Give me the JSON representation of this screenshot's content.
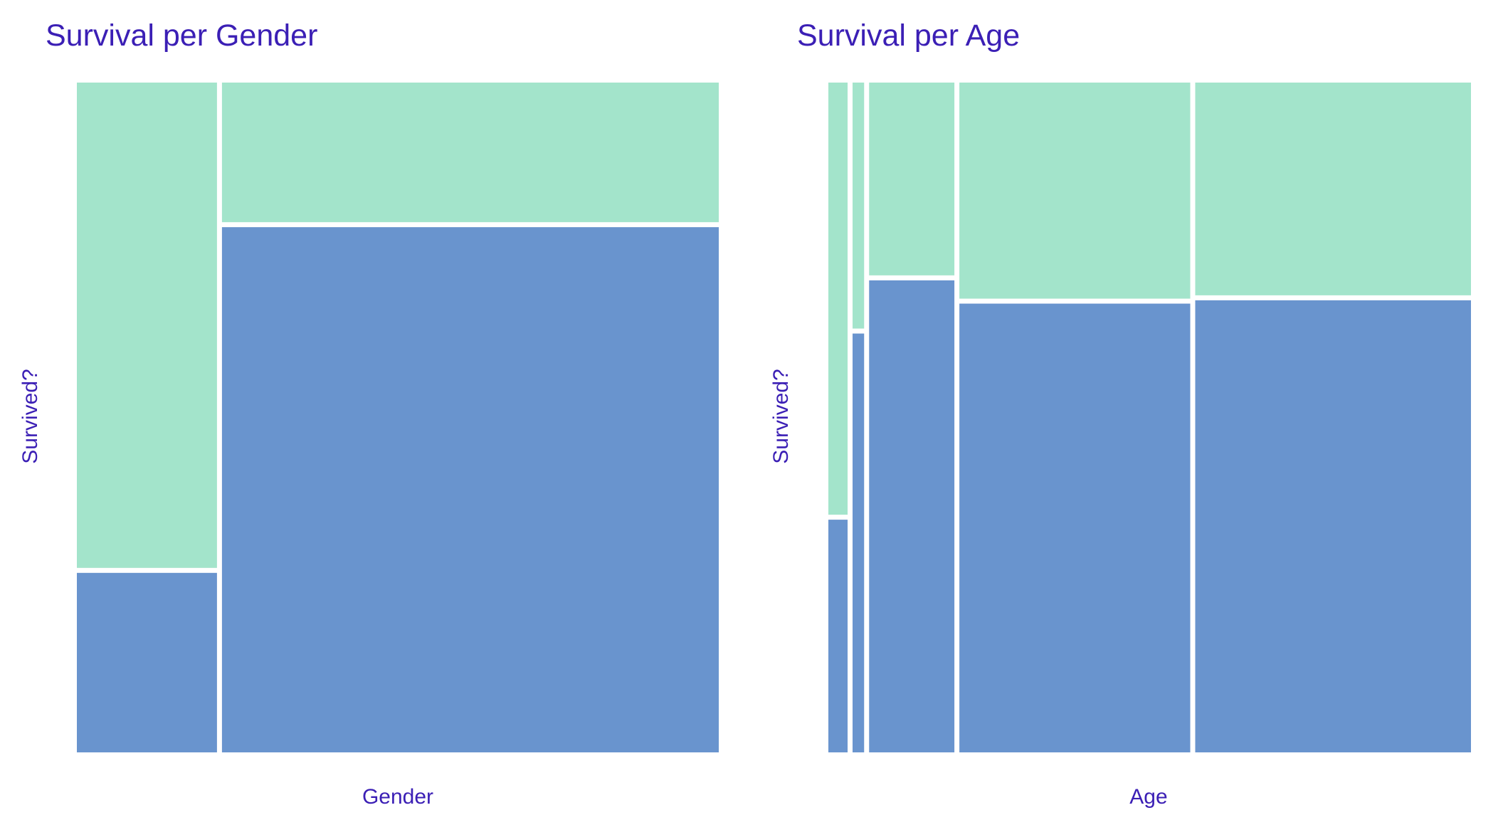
{
  "style": {
    "text_color": "#3b1fb5",
    "survived_color": "#a3e4cb",
    "not_survived_color": "#6994ce",
    "gap_color": "#ffffff"
  },
  "chart_data": [
    {
      "type": "mosaic",
      "title": "Survival per Gender",
      "xlabel": "Gender",
      "ylabel": "Survived?",
      "grid": false,
      "legend": "none",
      "columns": [
        {
          "width_fraction": 0.22,
          "survived_fraction": 0.27
        },
        {
          "width_fraction": 0.78,
          "survived_fraction": 0.79
        }
      ]
    },
    {
      "type": "mosaic",
      "title": "Survival per Age",
      "xlabel": "Age",
      "ylabel": "Survived?",
      "grid": false,
      "legend": "none",
      "columns": [
        {
          "width_fraction": 0.03,
          "survived_fraction": 0.35
        },
        {
          "width_fraction": 0.018,
          "survived_fraction": 0.63
        },
        {
          "width_fraction": 0.133,
          "survived_fraction": 0.71
        },
        {
          "width_fraction": 0.36,
          "survived_fraction": 0.675
        },
        {
          "width_fraction": 0.43,
          "survived_fraction": 0.68
        }
      ]
    }
  ]
}
